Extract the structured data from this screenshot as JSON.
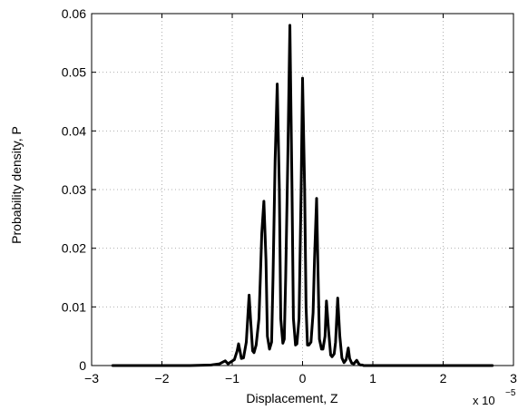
{
  "chart_data": {
    "type": "line",
    "title": "",
    "xlabel": "Displacement, Z",
    "ylabel": "Probability density, P",
    "x_exponent_label": "x 10",
    "x_exponent_power": "−5",
    "x_multiplier": 1e-05,
    "xlim": [
      -3,
      3
    ],
    "ylim": [
      0,
      0.06
    ],
    "x_ticks": [
      -3,
      -2,
      -1,
      0,
      1,
      2,
      3
    ],
    "x_tick_labels": [
      "−3",
      "−2",
      "−1",
      "0",
      "1",
      "2",
      "3"
    ],
    "y_ticks": [
      0,
      0.01,
      0.02,
      0.03,
      0.04,
      0.05,
      0.06
    ],
    "y_tick_labels": [
      "0",
      "0.01",
      "0.02",
      "0.03",
      "0.04",
      "0.05",
      "0.06"
    ],
    "grid": true,
    "line_color": "#000000",
    "grid_color": "#b0b0b0",
    "series": [
      {
        "x": [
          -2.7,
          -1.6,
          -1.3,
          -1.18,
          -1.1,
          -1.06,
          -0.97,
          -0.93,
          -0.91,
          -0.89,
          -0.87,
          -0.84,
          -0.8,
          -0.78,
          -0.76,
          -0.74,
          -0.71,
          -0.69,
          -0.66,
          -0.62,
          -0.6,
          -0.58,
          -0.55,
          -0.52,
          -0.5,
          -0.47,
          -0.44,
          -0.42,
          -0.39,
          -0.36,
          -0.33,
          -0.31,
          -0.28,
          -0.26,
          -0.24,
          -0.21,
          -0.18,
          -0.15,
          -0.13,
          -0.1,
          -0.08,
          -0.05,
          -0.02,
          0.0,
          0.03,
          0.05,
          0.07,
          0.09,
          0.12,
          0.15,
          0.17,
          0.2,
          0.22,
          0.24,
          0.27,
          0.29,
          0.32,
          0.34,
          0.37,
          0.4,
          0.42,
          0.45,
          0.47,
          0.5,
          0.53,
          0.56,
          0.59,
          0.62,
          0.65,
          0.67,
          0.7,
          0.73,
          0.77,
          0.8,
          0.82,
          0.85,
          0.87,
          0.9,
          0.95,
          1.1,
          1.3,
          1.6,
          2.7
        ],
        "y": [
          0,
          0,
          0.0001,
          0.0003,
          0.0008,
          0.0003,
          0.001,
          0.0025,
          0.0037,
          0.0025,
          0.0012,
          0.0013,
          0.004,
          0.008,
          0.012,
          0.008,
          0.0025,
          0.0022,
          0.0035,
          0.008,
          0.015,
          0.0225,
          0.028,
          0.018,
          0.005,
          0.0028,
          0.004,
          0.015,
          0.035,
          0.048,
          0.03,
          0.008,
          0.0038,
          0.0045,
          0.015,
          0.035,
          0.058,
          0.03,
          0.008,
          0.0035,
          0.0037,
          0.008,
          0.03,
          0.049,
          0.03,
          0.01,
          0.0035,
          0.0035,
          0.004,
          0.009,
          0.018,
          0.0285,
          0.016,
          0.0045,
          0.0028,
          0.0028,
          0.005,
          0.011,
          0.006,
          0.0018,
          0.0015,
          0.002,
          0.004,
          0.0115,
          0.005,
          0.0013,
          0.0005,
          0.001,
          0.003,
          0.0012,
          0.0004,
          0.0003,
          0.0009,
          0.0003,
          0.0001,
          0.0001,
          0,
          0,
          0,
          0,
          0,
          0,
          0
        ]
      }
    ]
  }
}
